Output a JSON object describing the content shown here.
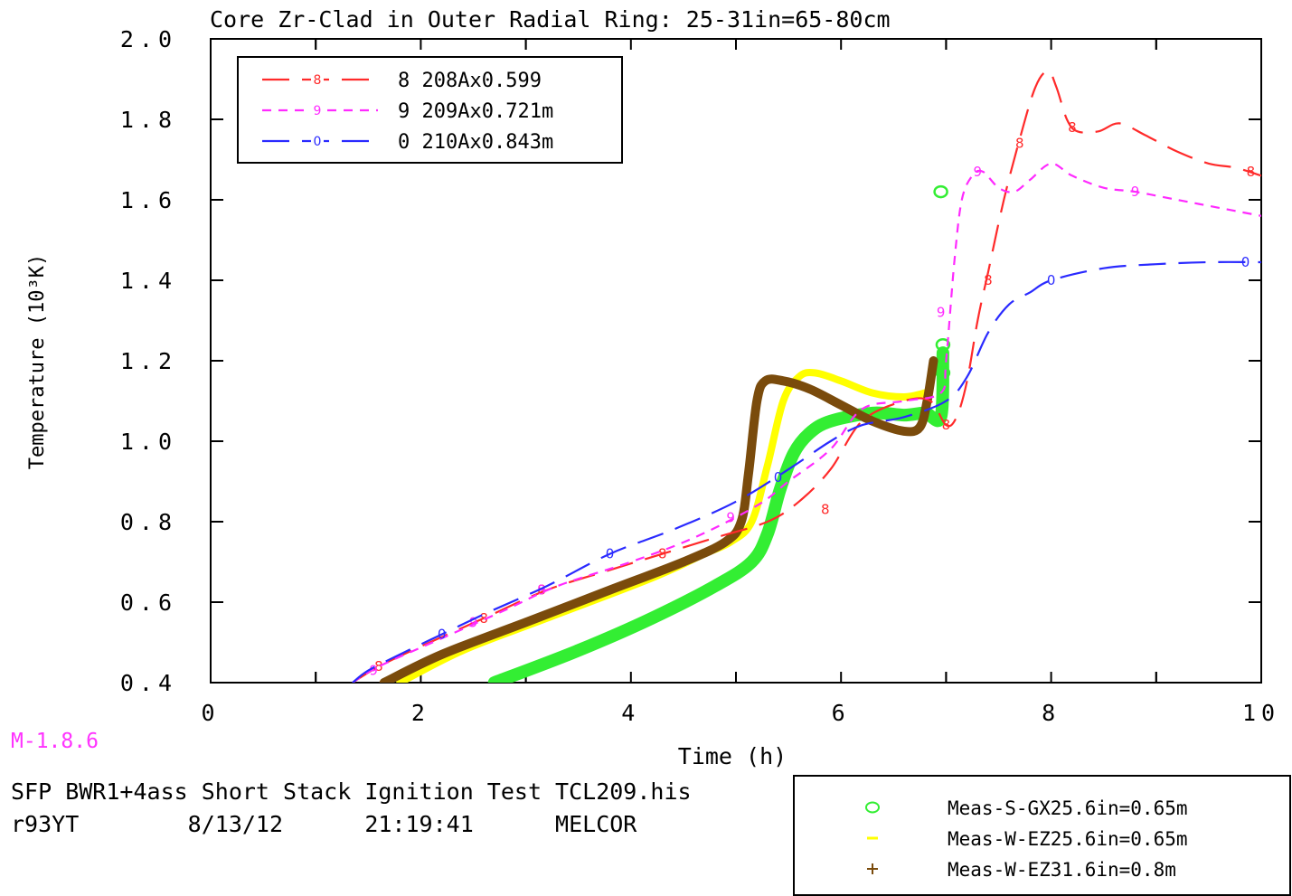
{
  "chart_data": {
    "type": "line",
    "title": "Core Zr-Clad in Outer Radial Ring: 25-31in=65-80cm",
    "xlabel": "Time (h)",
    "ylabel": "Temperature (10³K)",
    "xlim": [
      0,
      10
    ],
    "ylim": [
      0.4,
      2.0
    ],
    "xticks": [
      "0",
      "2",
      "4",
      "6",
      "8",
      "10"
    ],
    "yticks": [
      "0.4",
      "0.6",
      "0.8",
      "1.0",
      "1.2",
      "1.4",
      "1.6",
      "1.8",
      "2.0"
    ],
    "grid": false,
    "legend_position": "top-left",
    "series": [
      {
        "name": "8 208Ax0.599",
        "marker_label": "8",
        "color": "#ff2a2a",
        "dash": "long",
        "points": [
          [
            1.35,
            0.4
          ],
          [
            1.6,
            0.44
          ],
          [
            2.0,
            0.49
          ],
          [
            2.6,
            0.56
          ],
          [
            3.2,
            0.63
          ],
          [
            3.8,
            0.68
          ],
          [
            4.3,
            0.72
          ],
          [
            4.8,
            0.76
          ],
          [
            5.3,
            0.8
          ],
          [
            5.6,
            0.85
          ],
          [
            5.9,
            0.93
          ],
          [
            6.2,
            1.05
          ],
          [
            6.6,
            1.1
          ],
          [
            6.85,
            1.1
          ],
          [
            7.0,
            1.04
          ],
          [
            7.1,
            1.06
          ],
          [
            7.2,
            1.15
          ],
          [
            7.3,
            1.3
          ],
          [
            7.4,
            1.42
          ],
          [
            7.55,
            1.6
          ],
          [
            7.7,
            1.75
          ],
          [
            7.85,
            1.88
          ],
          [
            7.97,
            1.92
          ],
          [
            8.05,
            1.88
          ],
          [
            8.15,
            1.8
          ],
          [
            8.25,
            1.77
          ],
          [
            8.45,
            1.77
          ],
          [
            8.65,
            1.79
          ],
          [
            8.9,
            1.76
          ],
          [
            9.2,
            1.72
          ],
          [
            9.5,
            1.69
          ],
          [
            9.75,
            1.68
          ],
          [
            10.0,
            1.66
          ]
        ],
        "markers": [
          [
            1.6,
            0.44
          ],
          [
            2.6,
            0.56
          ],
          [
            3.15,
            0.63
          ],
          [
            4.3,
            0.72
          ],
          [
            5.85,
            0.83
          ],
          [
            7.0,
            1.04
          ],
          [
            7.4,
            1.4
          ],
          [
            7.7,
            1.74
          ],
          [
            8.2,
            1.78
          ],
          [
            9.9,
            1.67
          ]
        ]
      },
      {
        "name": "9 209Ax0.721m",
        "marker_label": "9",
        "color": "#ff2aff",
        "dash": "short",
        "points": [
          [
            1.35,
            0.4
          ],
          [
            1.6,
            0.44
          ],
          [
            2.2,
            0.51
          ],
          [
            2.8,
            0.58
          ],
          [
            3.3,
            0.64
          ],
          [
            4.0,
            0.7
          ],
          [
            4.6,
            0.76
          ],
          [
            5.2,
            0.84
          ],
          [
            5.5,
            0.9
          ],
          [
            5.9,
            0.98
          ],
          [
            6.2,
            1.08
          ],
          [
            6.6,
            1.1
          ],
          [
            6.95,
            1.12
          ],
          [
            7.0,
            1.2
          ],
          [
            7.08,
            1.45
          ],
          [
            7.15,
            1.6
          ],
          [
            7.25,
            1.66
          ],
          [
            7.35,
            1.67
          ],
          [
            7.5,
            1.63
          ],
          [
            7.65,
            1.62
          ],
          [
            7.8,
            1.65
          ],
          [
            8.0,
            1.69
          ],
          [
            8.2,
            1.66
          ],
          [
            8.5,
            1.63
          ],
          [
            8.8,
            1.62
          ],
          [
            9.2,
            1.6
          ],
          [
            9.6,
            1.58
          ],
          [
            10.0,
            1.56
          ]
        ],
        "markers": [
          [
            1.55,
            0.43
          ],
          [
            2.5,
            0.55
          ],
          [
            3.15,
            0.63
          ],
          [
            4.95,
            0.81
          ],
          [
            6.95,
            1.32
          ],
          [
            7.3,
            1.67
          ],
          [
            8.8,
            1.62
          ]
        ]
      },
      {
        "name": "0 210Ax0.843m",
        "marker_label": "0",
        "color": "#2a2aff",
        "dash": "long",
        "points": [
          [
            1.35,
            0.4
          ],
          [
            1.5,
            0.43
          ],
          [
            1.8,
            0.47
          ],
          [
            2.2,
            0.52
          ],
          [
            2.6,
            0.57
          ],
          [
            3.2,
            0.64
          ],
          [
            3.8,
            0.72
          ],
          [
            4.4,
            0.78
          ],
          [
            5.0,
            0.85
          ],
          [
            5.5,
            0.93
          ],
          [
            5.9,
            1.0
          ],
          [
            6.2,
            1.04
          ],
          [
            6.6,
            1.06
          ],
          [
            7.0,
            1.1
          ],
          [
            7.2,
            1.16
          ],
          [
            7.4,
            1.27
          ],
          [
            7.6,
            1.34
          ],
          [
            7.8,
            1.37
          ],
          [
            8.0,
            1.4
          ],
          [
            8.5,
            1.43
          ],
          [
            9.0,
            1.44
          ],
          [
            9.5,
            1.445
          ],
          [
            10.0,
            1.445
          ]
        ],
        "markers": [
          [
            2.2,
            0.52
          ],
          [
            3.8,
            0.72
          ],
          [
            5.4,
            0.91
          ],
          [
            8.0,
            1.4
          ],
          [
            9.85,
            1.445
          ]
        ]
      }
    ],
    "measured_series": [
      {
        "name": "Meas-S-GX25.6in=0.65m",
        "legend_symbol": "o",
        "color": "#33ee33",
        "points": [
          [
            2.7,
            0.4
          ],
          [
            3.5,
            0.48
          ],
          [
            4.2,
            0.56
          ],
          [
            4.8,
            0.64
          ],
          [
            5.15,
            0.7
          ],
          [
            5.3,
            0.77
          ],
          [
            5.42,
            0.88
          ],
          [
            5.55,
            0.97
          ],
          [
            5.7,
            1.02
          ],
          [
            5.9,
            1.05
          ],
          [
            6.3,
            1.07
          ],
          [
            6.6,
            1.065
          ],
          [
            6.8,
            1.07
          ],
          [
            6.95,
            1.06
          ],
          [
            6.97,
            1.22
          ]
        ],
        "markers": [
          [
            6.95,
            1.62
          ],
          [
            6.97,
            1.24
          ],
          [
            6.97,
            1.17
          ]
        ]
      },
      {
        "name": "Meas-W-EZ25.6in=0.65m",
        "legend_symbol": "-",
        "color": "#ffff00",
        "points": [
          [
            1.8,
            0.4
          ],
          [
            2.4,
            0.48
          ],
          [
            3.2,
            0.56
          ],
          [
            4.2,
            0.66
          ],
          [
            4.7,
            0.72
          ],
          [
            4.95,
            0.75
          ],
          [
            5.15,
            0.8
          ],
          [
            5.3,
            0.94
          ],
          [
            5.45,
            1.1
          ],
          [
            5.6,
            1.16
          ],
          [
            5.75,
            1.17
          ],
          [
            6.0,
            1.15
          ],
          [
            6.3,
            1.12
          ],
          [
            6.6,
            1.11
          ],
          [
            6.8,
            1.12
          ]
        ],
        "markers": []
      },
      {
        "name": "Meas-W-EZ31.6in=0.8m",
        "legend_symbol": "+",
        "color": "#7a4b0c",
        "points": [
          [
            1.65,
            0.4
          ],
          [
            2.2,
            0.47
          ],
          [
            3.0,
            0.55
          ],
          [
            3.8,
            0.63
          ],
          [
            4.5,
            0.7
          ],
          [
            4.9,
            0.75
          ],
          [
            5.05,
            0.8
          ],
          [
            5.12,
            0.92
          ],
          [
            5.2,
            1.1
          ],
          [
            5.28,
            1.15
          ],
          [
            5.45,
            1.15
          ],
          [
            5.7,
            1.13
          ],
          [
            6.0,
            1.09
          ],
          [
            6.3,
            1.05
          ],
          [
            6.6,
            1.025
          ],
          [
            6.75,
            1.035
          ],
          [
            6.82,
            1.1
          ],
          [
            6.88,
            1.2
          ]
        ],
        "markers": []
      }
    ]
  },
  "footer": {
    "version": "M-1.8.6",
    "line1": "SFP BWR1+4ass Short Stack Ignition Test TCL209.his",
    "line2": "r93YT        8/13/12      21:19:41      MELCOR"
  }
}
